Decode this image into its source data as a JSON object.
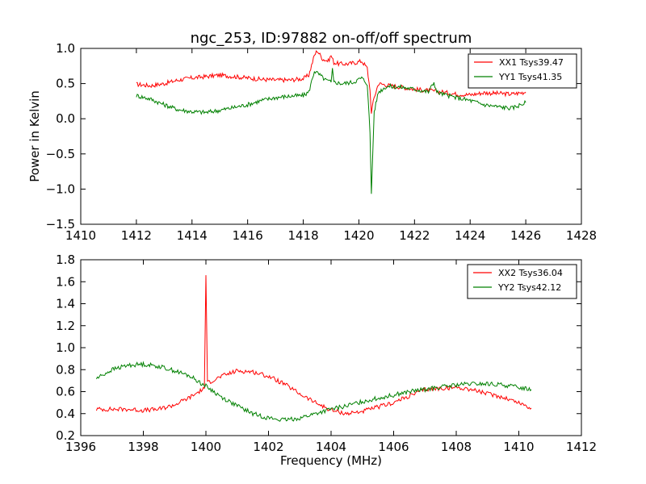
{
  "chart_data": [
    {
      "type": "line",
      "title": "ngc_253, ID:97882 on-off/off spectrum",
      "xlabel": "",
      "ylabel": "Power in Kelvin",
      "xlim": [
        1410,
        1428
      ],
      "ylim": [
        -1.5,
        1.0
      ],
      "xticks": [
        "1410",
        "1412",
        "1414",
        "1416",
        "1418",
        "1420",
        "1422",
        "1424",
        "1426",
        "1428"
      ],
      "yticks": [
        "−1.5",
        "−1.0",
        "−0.5",
        "0.0",
        "0.5",
        "1.0"
      ],
      "xtick_values": [
        1410,
        1412,
        1414,
        1416,
        1418,
        1420,
        1422,
        1424,
        1426,
        1428
      ],
      "ytick_values": [
        -1.5,
        -1.0,
        -0.5,
        0.0,
        0.5,
        1.0
      ],
      "legend_position": "top-right",
      "grid": false,
      "series": [
        {
          "name": "XX1 Tsys39.47",
          "color": "#ff0000",
          "x": [
            1412.0,
            1412.5,
            1413.0,
            1413.5,
            1414.0,
            1414.5,
            1415.0,
            1415.5,
            1416.0,
            1416.5,
            1417.0,
            1417.5,
            1418.0,
            1418.2,
            1418.4,
            1418.5,
            1418.7,
            1418.9,
            1419.0,
            1419.1,
            1419.3,
            1419.6,
            1419.9,
            1420.1,
            1420.3,
            1420.4,
            1420.45,
            1420.55,
            1420.7,
            1421.0,
            1421.5,
            1422.0,
            1422.5,
            1423.0,
            1423.5,
            1424.0,
            1424.5,
            1425.0,
            1425.5,
            1426.0
          ],
          "y": [
            0.49,
            0.47,
            0.5,
            0.55,
            0.58,
            0.6,
            0.62,
            0.6,
            0.58,
            0.56,
            0.55,
            0.55,
            0.57,
            0.62,
            0.9,
            0.97,
            0.85,
            0.82,
            0.9,
            0.8,
            0.78,
            0.78,
            0.8,
            0.82,
            0.72,
            0.4,
            0.1,
            0.3,
            0.5,
            0.48,
            0.45,
            0.42,
            0.4,
            0.38,
            0.35,
            0.34,
            0.37,
            0.36,
            0.35,
            0.38
          ]
        },
        {
          "name": "YY1 Tsys41.35",
          "color": "#008000",
          "x": [
            1412.0,
            1412.5,
            1413.0,
            1413.5,
            1414.0,
            1414.5,
            1415.0,
            1415.5,
            1416.0,
            1416.5,
            1417.0,
            1417.5,
            1418.0,
            1418.2,
            1418.4,
            1418.6,
            1418.8,
            1419.0,
            1419.05,
            1419.1,
            1419.4,
            1419.8,
            1420.1,
            1420.3,
            1420.4,
            1420.45,
            1420.55,
            1420.7,
            1421.0,
            1421.5,
            1422.0,
            1422.5,
            1422.7,
            1422.8,
            1423.0,
            1423.5,
            1424.0,
            1424.5,
            1425.0,
            1425.5,
            1426.0
          ],
          "y": [
            0.33,
            0.28,
            0.2,
            0.13,
            0.1,
            0.09,
            0.12,
            0.16,
            0.2,
            0.26,
            0.3,
            0.32,
            0.33,
            0.38,
            0.68,
            0.62,
            0.55,
            0.52,
            0.72,
            0.52,
            0.5,
            0.52,
            0.58,
            0.5,
            -0.2,
            -1.06,
            0.1,
            0.38,
            0.46,
            0.45,
            0.42,
            0.38,
            0.52,
            0.38,
            0.35,
            0.3,
            0.26,
            0.2,
            0.17,
            0.15,
            0.23
          ]
        }
      ]
    },
    {
      "type": "line",
      "title": "",
      "xlabel": "Frequency (MHz)",
      "ylabel": "",
      "xlim": [
        1396,
        1412
      ],
      "ylim": [
        0.2,
        1.8
      ],
      "xticks": [
        "1396",
        "1398",
        "1400",
        "1402",
        "1404",
        "1406",
        "1408",
        "1410",
        "1412"
      ],
      "yticks": [
        "0.2",
        "0.4",
        "0.6",
        "0.8",
        "1.0",
        "1.2",
        "1.4",
        "1.6",
        "1.8"
      ],
      "xtick_values": [
        1396,
        1398,
        1400,
        1402,
        1404,
        1406,
        1408,
        1410,
        1412
      ],
      "ytick_values": [
        0.2,
        0.4,
        0.6,
        0.8,
        1.0,
        1.2,
        1.4,
        1.6,
        1.8
      ],
      "legend_position": "top-right",
      "grid": false,
      "series": [
        {
          "name": "XX2 Tsys36.04",
          "color": "#ff0000",
          "x": [
            1396.5,
            1397.0,
            1397.5,
            1398.0,
            1398.5,
            1399.0,
            1399.5,
            1399.95,
            1400.0,
            1400.05,
            1400.5,
            1401.0,
            1401.5,
            1402.0,
            1402.5,
            1403.0,
            1403.5,
            1404.0,
            1404.5,
            1405.0,
            1405.5,
            1406.0,
            1406.5,
            1407.0,
            1407.5,
            1408.0,
            1408.5,
            1409.0,
            1409.5,
            1410.0,
            1410.4
          ],
          "y": [
            0.44,
            0.44,
            0.44,
            0.43,
            0.44,
            0.48,
            0.55,
            0.63,
            1.66,
            0.68,
            0.74,
            0.79,
            0.78,
            0.74,
            0.67,
            0.58,
            0.5,
            0.43,
            0.4,
            0.42,
            0.46,
            0.5,
            0.56,
            0.62,
            0.63,
            0.64,
            0.62,
            0.58,
            0.55,
            0.5,
            0.45
          ]
        },
        {
          "name": "YY2 Tsys42.12",
          "color": "#008000",
          "x": [
            1396.5,
            1397.0,
            1397.5,
            1398.0,
            1398.5,
            1399.0,
            1399.5,
            1400.0,
            1400.5,
            1401.0,
            1401.5,
            1402.0,
            1402.5,
            1403.0,
            1403.5,
            1404.0,
            1404.5,
            1405.0,
            1405.5,
            1406.0,
            1406.5,
            1407.0,
            1407.5,
            1408.0,
            1408.5,
            1409.0,
            1409.5,
            1410.0,
            1410.4
          ],
          "y": [
            0.72,
            0.8,
            0.84,
            0.85,
            0.83,
            0.79,
            0.74,
            0.65,
            0.55,
            0.47,
            0.4,
            0.36,
            0.34,
            0.36,
            0.4,
            0.44,
            0.47,
            0.51,
            0.54,
            0.57,
            0.6,
            0.62,
            0.64,
            0.66,
            0.67,
            0.67,
            0.66,
            0.64,
            0.62
          ]
        }
      ]
    }
  ]
}
